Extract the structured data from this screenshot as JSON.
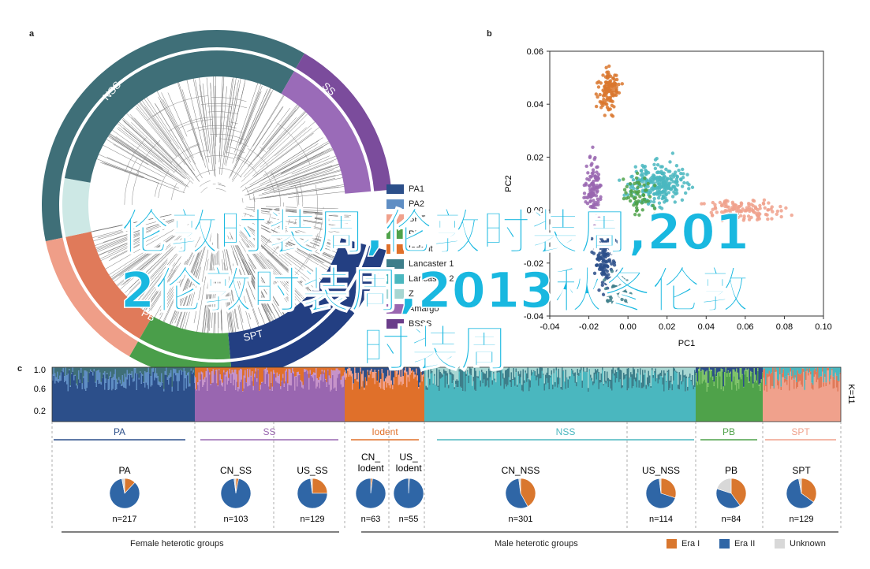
{
  "panels": {
    "a": "a",
    "b": "b",
    "c": "c"
  },
  "panel_a": {
    "arc_labels": [
      "NSS",
      "SS",
      "SPT",
      "PB"
    ],
    "legend": [
      {
        "label": "PA1",
        "color": "#2c4f8a"
      },
      {
        "label": "PA2",
        "color": "#5f8ec4"
      },
      {
        "label": "SPT",
        "color": "#f0a18c"
      },
      {
        "label": "PB",
        "color": "#4fa24a"
      },
      {
        "label": "Iodent",
        "color": "#e0702a"
      },
      {
        "label": "Lancaster 1",
        "color": "#3d7e8a"
      },
      {
        "label": "Lancaster 2",
        "color": "#4ab7bf"
      },
      {
        "label": "Z",
        "color": "#a6d6d2"
      },
      {
        "label": "Amargo",
        "color": "#9966b0"
      },
      {
        "label": "BSSS",
        "color": "#6a3d8a"
      }
    ]
  },
  "chart_data": {
    "type": "scatter",
    "xlabel": "PC1",
    "ylabel": "PC2",
    "xlim": [
      -0.04,
      0.1
    ],
    "ylim": [
      -0.04,
      0.06
    ],
    "xticks": [
      "-0.04",
      "-0.02",
      "0.00",
      "0.02",
      "0.04",
      "0.06",
      "0.08",
      "0.10"
    ],
    "yticks": [
      "0.06",
      "0.04",
      "0.02",
      "0.00",
      "-0.02",
      "-0.04"
    ],
    "series": [
      {
        "color": "#d9772e",
        "center": [
          -0.01,
          0.045
        ],
        "spread": [
          0.005,
          0.008
        ],
        "n": 120
      },
      {
        "color": "#4ab7bf",
        "center": [
          0.015,
          0.01
        ],
        "spread": [
          0.014,
          0.008
        ],
        "n": 260
      },
      {
        "color": "#f0a18c",
        "center": [
          0.06,
          0.0
        ],
        "spread": [
          0.018,
          0.004
        ],
        "n": 120
      },
      {
        "color": "#9966b0",
        "center": [
          -0.018,
          0.008
        ],
        "spread": [
          0.004,
          0.012
        ],
        "n": 110
      },
      {
        "color": "#2c4f8a",
        "center": [
          -0.012,
          -0.018
        ],
        "spread": [
          0.006,
          0.01
        ],
        "n": 120
      },
      {
        "color": "#4fa24a",
        "center": [
          0.005,
          0.005
        ],
        "spread": [
          0.008,
          0.008
        ],
        "n": 60
      },
      {
        "color": "#3d7e8a",
        "center": [
          -0.005,
          -0.03
        ],
        "spread": [
          0.006,
          0.006
        ],
        "n": 50
      }
    ]
  },
  "panel_c": {
    "yticks": [
      "1.0",
      "0.6",
      "0.2"
    ],
    "k_label": "K=11",
    "groups": [
      {
        "label": "PA",
        "color": "#2c4f8a"
      },
      {
        "label": "SS",
        "color": "#9966b0"
      },
      {
        "label": "Iodent",
        "color": "#e0702a"
      },
      {
        "label": "NSS",
        "color": "#4ab7bf"
      },
      {
        "label": "PB",
        "color": "#4fa24a"
      },
      {
        "label": "SPT",
        "color": "#f0a18c"
      }
    ],
    "pies": [
      {
        "title": "PA",
        "n": "n=217",
        "era1": 0.12,
        "era2": 0.85
      },
      {
        "title": "CN_SS",
        "n": "n=103",
        "era1": 0.03,
        "era2": 0.95
      },
      {
        "title": "US_SS",
        "n": "n=129",
        "era1": 0.25,
        "era2": 0.73
      },
      {
        "title": "CN_\nIodent",
        "n": "n=63",
        "era1": 0.02,
        "era2": 0.98
      },
      {
        "title": "US_\nIodent",
        "n": "n=55",
        "era1": 0.01,
        "era2": 0.99
      },
      {
        "title": "CN_NSS",
        "n": "n=301",
        "era1": 0.42,
        "era2": 0.56
      },
      {
        "title": "US_NSS",
        "n": "n=114",
        "era1": 0.3,
        "era2": 0.68
      },
      {
        "title": "PB",
        "n": "n=84",
        "era1": 0.4,
        "era2": 0.4
      },
      {
        "title": "SPT",
        "n": "n=129",
        "era1": 0.35,
        "era2": 0.62
      }
    ],
    "group_labels": [
      "Female heterotic groups",
      "Male heterotic groups"
    ],
    "legend": [
      {
        "label": "Era I",
        "color": "#d9772e"
      },
      {
        "label": "Era II",
        "color": "#2f66a6"
      },
      {
        "label": "Unknown",
        "color": "#d8d8d8"
      }
    ]
  },
  "overlay_text": [
    "伦敦时装周,伦敦时装周,201",
    "2伦敦时装周,2013秋冬伦敦",
    "时装周"
  ]
}
